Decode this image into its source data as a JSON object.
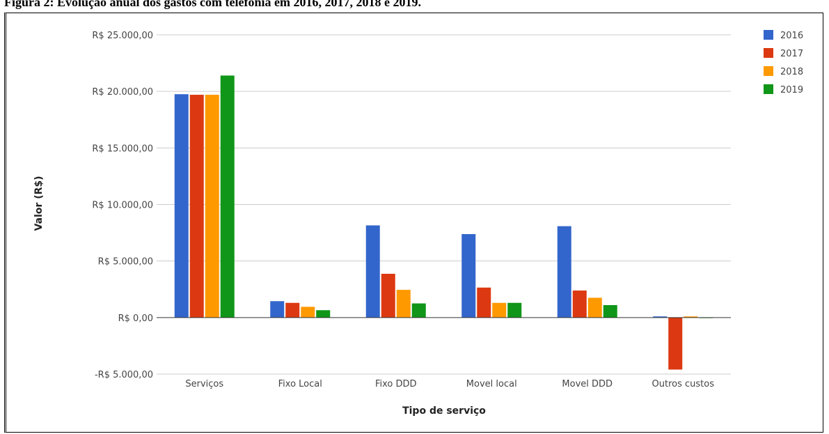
{
  "caption": "Figura 2: Evolução anual dos gastos com telefonia em 2016, 2017, 2018 e 2019.",
  "chart_data": {
    "type": "bar",
    "title": "",
    "xlabel": "Tipo de serviço",
    "ylabel": "Valor (R$)",
    "categories": [
      "Serviços",
      "Fixo Local",
      "Fixo DDD",
      "Movel local",
      "Movel DDD",
      "Outros custos"
    ],
    "ylim": [
      -5000,
      25000
    ],
    "yticks": [
      25000,
      20000,
      15000,
      10000,
      5000,
      0,
      -5000
    ],
    "ytick_labels": [
      "R$ 25.000,00",
      "R$ 20.000,00",
      "R$ 15.000,00",
      "R$ 10.000,00",
      "R$ 5.000,00",
      "R$ 0,00",
      "-R$ 5.000,00"
    ],
    "grid": true,
    "legend_position": "top-right",
    "series": [
      {
        "name": "2016",
        "color": "#3366cc",
        "values": [
          19750,
          1450,
          8150,
          7380,
          8080,
          100
        ]
      },
      {
        "name": "2017",
        "color": "#dc3912",
        "values": [
          19700,
          1300,
          3870,
          2650,
          2390,
          -4600
        ]
      },
      {
        "name": "2018",
        "color": "#ff9900",
        "values": [
          19700,
          950,
          2450,
          1300,
          1750,
          100
        ]
      },
      {
        "name": "2019",
        "color": "#109618",
        "values": [
          21400,
          650,
          1250,
          1300,
          1100,
          0
        ]
      }
    ]
  }
}
